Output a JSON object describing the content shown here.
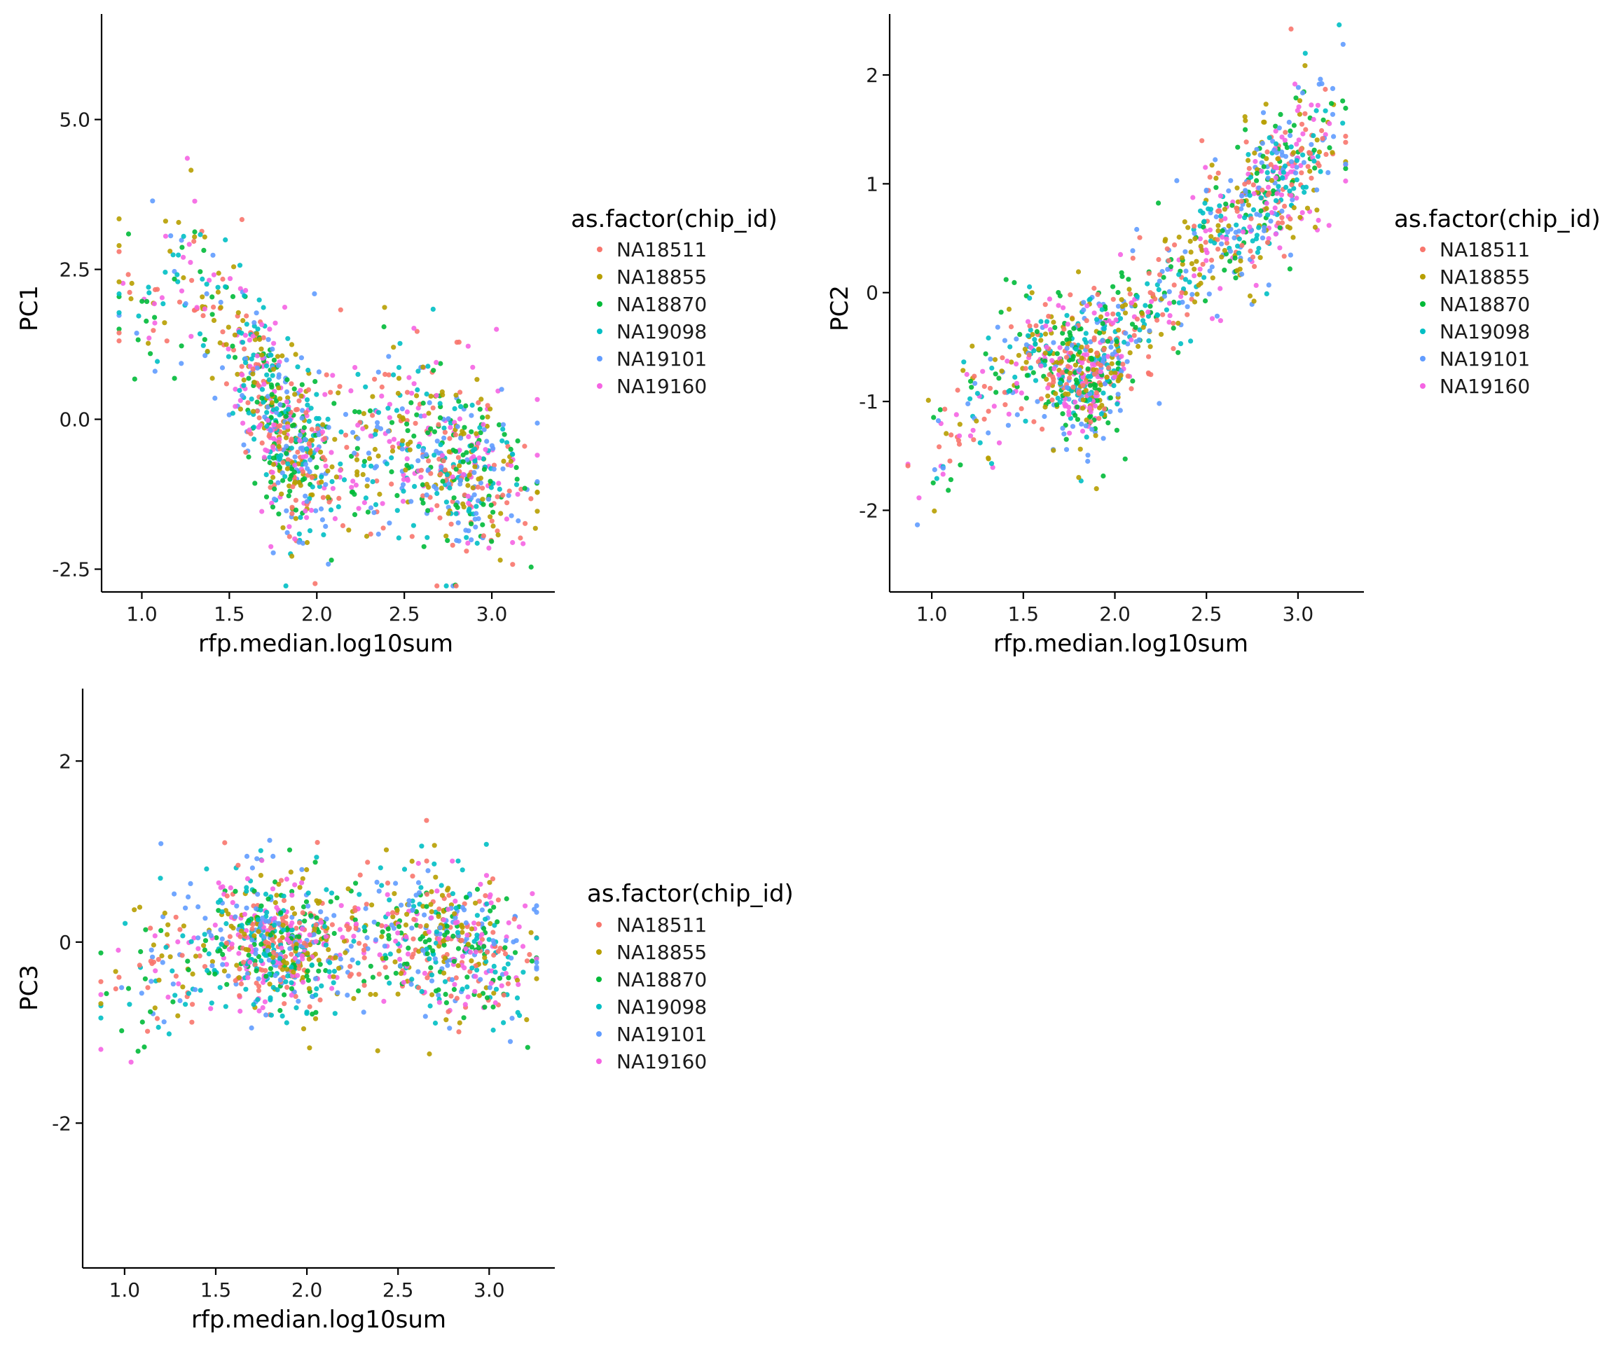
{
  "legend": {
    "title": "as.factor(chip_id)",
    "items": [
      {
        "label": "NA18511",
        "color": "#F8766D"
      },
      {
        "label": "NA18855",
        "color": "#B79F00"
      },
      {
        "label": "NA18870",
        "color": "#00BA38"
      },
      {
        "label": "NA19098",
        "color": "#00BFC4"
      },
      {
        "label": "NA19101",
        "color": "#619CFF"
      },
      {
        "label": "NA19160",
        "color": "#F564E3"
      }
    ]
  },
  "chart_data": [
    {
      "type": "scatter",
      "id": "pc1",
      "xlabel": "rfp.median.log10sum",
      "ylabel": "PC1",
      "xlim": [
        0.77,
        3.36
      ],
      "ylim": [
        -2.88,
        6.76
      ],
      "xticks": [
        {
          "v": 1.0,
          "label": "1.0"
        },
        {
          "v": 1.5,
          "label": "1.5"
        },
        {
          "v": 2.0,
          "label": "2.0"
        },
        {
          "v": 2.5,
          "label": "2.5"
        },
        {
          "v": 3.0,
          "label": "3.0"
        }
      ],
      "yticks": [
        {
          "v": -2.5,
          "label": "-2.5"
        },
        {
          "v": 0.0,
          "label": "0.0"
        },
        {
          "v": 2.5,
          "label": "2.5"
        },
        {
          "v": 5.0,
          "label": "5.0"
        }
      ],
      "n_points_per_series": 210,
      "trend": {
        "type": "piecewise",
        "xs": [
          0.88,
          1.3,
          1.55,
          1.85,
          2.1,
          2.5,
          2.8,
          3.25
        ],
        "ys": [
          2.0,
          2.4,
          1.3,
          -0.6,
          -0.7,
          -0.3,
          -0.8,
          -1.1
        ]
      },
      "spread": 0.95,
      "x_clusters": [
        {
          "x": 1.8,
          "sd": 0.14,
          "w": 0.35
        },
        {
          "x": 2.85,
          "sd": 0.18,
          "w": 0.3
        },
        {
          "x": 1.4,
          "sd": 0.3,
          "w": 0.15
        },
        {
          "x": 2.3,
          "sd": 0.3,
          "w": 0.2
        }
      ]
    },
    {
      "type": "scatter",
      "id": "pc2",
      "xlabel": "rfp.median.log10sum",
      "ylabel": "PC2",
      "xlim": [
        0.77,
        3.36
      ],
      "ylim": [
        -2.75,
        2.56
      ],
      "xticks": [
        {
          "v": 1.0,
          "label": "1.0"
        },
        {
          "v": 1.5,
          "label": "1.5"
        },
        {
          "v": 2.0,
          "label": "2.0"
        },
        {
          "v": 2.5,
          "label": "2.5"
        },
        {
          "v": 3.0,
          "label": "3.0"
        }
      ],
      "yticks": [
        {
          "v": -2,
          "label": "-2"
        },
        {
          "v": -1,
          "label": "-1"
        },
        {
          "v": 0,
          "label": "0"
        },
        {
          "v": 1,
          "label": "1"
        },
        {
          "v": 2,
          "label": "2"
        }
      ],
      "n_points_per_series": 210,
      "trend": {
        "type": "piecewise",
        "xs": [
          0.88,
          1.5,
          1.85,
          2.2,
          2.6,
          3.0,
          3.25
        ],
        "ys": [
          -1.7,
          -0.5,
          -0.85,
          -0.05,
          0.6,
          1.15,
          1.6
        ]
      },
      "spread": 0.42,
      "x_clusters": [
        {
          "x": 1.85,
          "sd": 0.14,
          "w": 0.35
        },
        {
          "x": 2.9,
          "sd": 0.17,
          "w": 0.3
        },
        {
          "x": 1.45,
          "sd": 0.25,
          "w": 0.15
        },
        {
          "x": 2.4,
          "sd": 0.25,
          "w": 0.2
        }
      ]
    },
    {
      "type": "scatter",
      "id": "pc3",
      "xlabel": "rfp.median.log10sum",
      "ylabel": "PC3",
      "xlim": [
        0.77,
        3.36
      ],
      "ylim": [
        -3.6,
        2.8
      ],
      "xticks": [
        {
          "v": 1.0,
          "label": "1.0"
        },
        {
          "v": 1.5,
          "label": "1.5"
        },
        {
          "v": 2.0,
          "label": "2.0"
        },
        {
          "v": 2.5,
          "label": "2.5"
        },
        {
          "v": 3.0,
          "label": "3.0"
        }
      ],
      "yticks": [
        {
          "v": -2,
          "label": "-2"
        },
        {
          "v": 0,
          "label": "0"
        },
        {
          "v": 2,
          "label": "2"
        }
      ],
      "n_points_per_series": 210,
      "trend": {
        "type": "piecewise",
        "xs": [
          0.88,
          1.5,
          1.9,
          2.4,
          2.9,
          3.25
        ],
        "ys": [
          -0.5,
          0.0,
          -0.1,
          0.1,
          0.0,
          -0.2
        ]
      },
      "spread": 0.5,
      "x_clusters": [
        {
          "x": 1.85,
          "sd": 0.15,
          "w": 0.35
        },
        {
          "x": 2.85,
          "sd": 0.2,
          "w": 0.3
        },
        {
          "x": 1.4,
          "sd": 0.28,
          "w": 0.15
        },
        {
          "x": 2.35,
          "sd": 0.3,
          "w": 0.2
        }
      ]
    }
  ]
}
